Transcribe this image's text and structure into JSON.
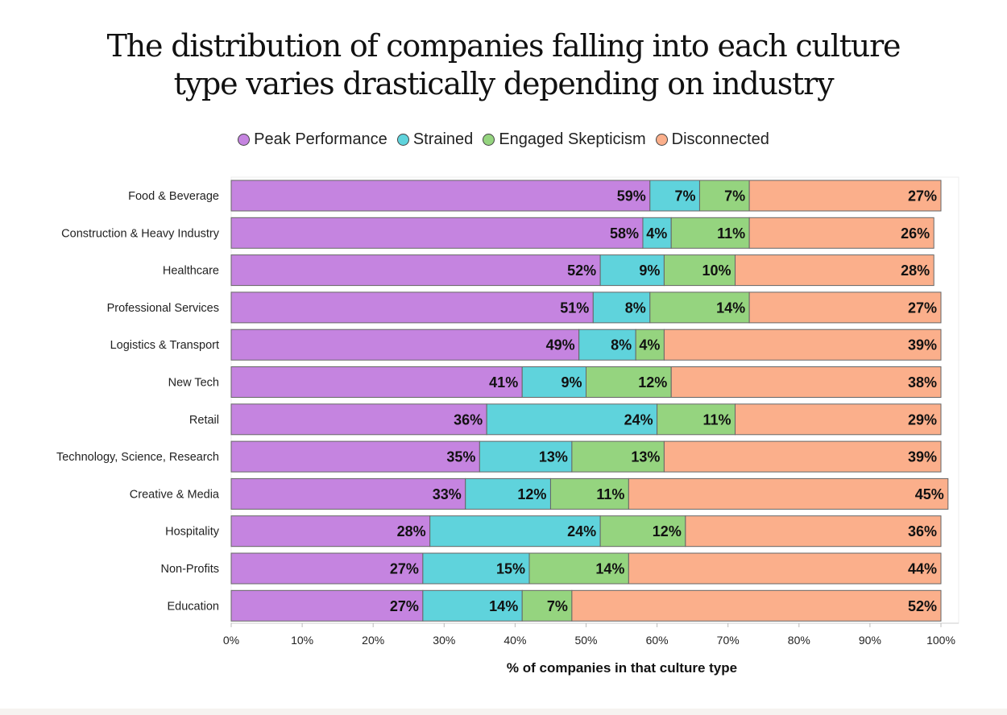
{
  "title": {
    "line1": "The distribution of companies falling into each culture",
    "line2": "type varies drastically depending on industry"
  },
  "colors": {
    "peak": "#c584e0",
    "strained": "#5fd3dc",
    "engaged": "#95d47f",
    "disconnected": "#fbaf8b"
  },
  "chart_data": {
    "type": "bar",
    "orientation": "horizontal",
    "stacked": true,
    "title": "The distribution of companies falling into each culture type varies drastically depending on industry",
    "xlabel": "% of companies in that culture type",
    "ylabel": "",
    "xlim": [
      0,
      100
    ],
    "xticks": [
      "0%",
      "10%",
      "20%",
      "30%",
      "40%",
      "50%",
      "60%",
      "70%",
      "80%",
      "90%",
      "100%"
    ],
    "legend_position": "top-center",
    "categories": [
      "Food & Beverage",
      "Construction & Heavy Industry",
      "Healthcare",
      "Professional Services",
      "Logistics & Transport",
      "New Tech",
      "Retail",
      "Technology, Science, Research",
      "Creative & Media",
      "Hospitality",
      "Non-Profits",
      "Education"
    ],
    "series": [
      {
        "name": "Peak Performance",
        "color_key": "peak",
        "values": [
          59,
          58,
          52,
          51,
          49,
          41,
          36,
          35,
          33,
          28,
          27,
          27
        ]
      },
      {
        "name": "Strained",
        "color_key": "strained",
        "values": [
          7,
          4,
          9,
          8,
          8,
          9,
          24,
          13,
          12,
          24,
          15,
          14
        ]
      },
      {
        "name": "Engaged Skepticism",
        "color_key": "engaged",
        "values": [
          7,
          11,
          10,
          14,
          4,
          12,
          11,
          13,
          11,
          12,
          14,
          7
        ]
      },
      {
        "name": "Disconnected",
        "color_key": "disconnected",
        "values": [
          27,
          26,
          28,
          27,
          39,
          38,
          29,
          39,
          45,
          36,
          44,
          52
        ]
      }
    ]
  }
}
